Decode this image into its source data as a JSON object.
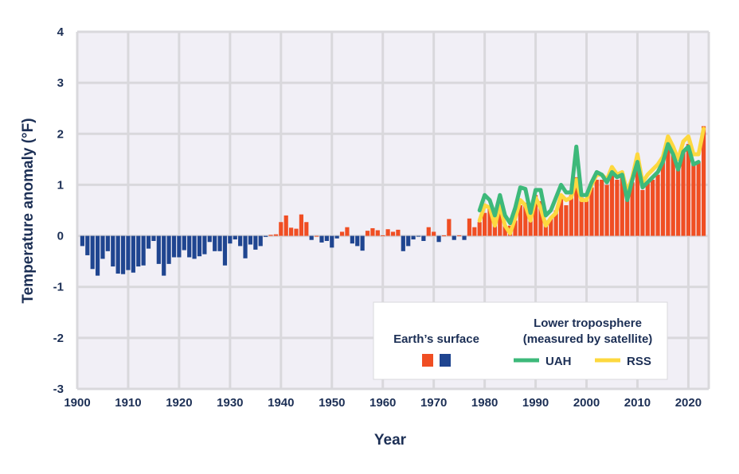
{
  "chart_data": {
    "type": "bar",
    "title": "",
    "xlabel": "Year",
    "ylabel": "Temperature anomaly (°F)",
    "xlim": [
      1900,
      2024
    ],
    "ylim": [
      -3,
      4
    ],
    "grid": true,
    "x_ticks": [
      "1900",
      "1910",
      "1920",
      "1930",
      "1940",
      "1950",
      "1960",
      "1970",
      "1980",
      "1990",
      "2000",
      "2010",
      "2020"
    ],
    "y_ticks": [
      "4",
      "3",
      "2",
      "1",
      "0",
      "-1",
      "-2",
      "-3"
    ],
    "legend": {
      "placement": "bottom-right",
      "surface_title": "Earth’s surface",
      "satellite_title_1": "Lower troposphere",
      "satellite_title_2": "(measured by satellite)",
      "uah_label": "UAH",
      "rss_label": "RSS"
    },
    "colors": {
      "positive": "#f04e23",
      "negative": "#1f4590",
      "uah": "#3db97a",
      "rss": "#fdd83f",
      "plot_bg": "#f1eff6",
      "grid": "#d9d8dc"
    },
    "surface": {
      "name": "Earth’s surface",
      "start_year": 1901,
      "values": [
        -0.2,
        -0.38,
        -0.65,
        -0.78,
        -0.45,
        -0.3,
        -0.6,
        -0.74,
        -0.75,
        -0.67,
        -0.72,
        -0.6,
        -0.58,
        -0.25,
        -0.1,
        -0.55,
        -0.78,
        -0.55,
        -0.42,
        -0.42,
        -0.28,
        -0.42,
        -0.45,
        -0.4,
        -0.36,
        -0.12,
        -0.3,
        -0.3,
        -0.58,
        -0.15,
        -0.07,
        -0.2,
        -0.44,
        -0.17,
        -0.27,
        -0.2,
        -0.02,
        0.02,
        0.03,
        0.27,
        0.4,
        0.16,
        0.14,
        0.42,
        0.27,
        -0.08,
        0.0,
        -0.13,
        -0.1,
        -0.23,
        -0.05,
        0.08,
        0.17,
        -0.15,
        -0.2,
        -0.29,
        0.1,
        0.15,
        0.11,
        0.01,
        0.13,
        0.08,
        0.12,
        -0.3,
        -0.2,
        -0.07,
        -0.01,
        -0.1,
        0.17,
        0.08,
        -0.12,
        0.01,
        0.33,
        -0.08,
        0.01,
        -0.08,
        0.34,
        0.17,
        0.27,
        0.45,
        0.55,
        0.3,
        0.55,
        0.2,
        0.2,
        0.3,
        0.6,
        0.65,
        0.35,
        0.8,
        0.68,
        0.3,
        0.35,
        0.5,
        0.75,
        0.6,
        0.8,
        1.15,
        0.75,
        0.72,
        0.95,
        1.1,
        1.1,
        1.0,
        1.25,
        1.1,
        1.15,
        0.85,
        1.05,
        1.3,
        0.9,
        1.05,
        1.1,
        1.2,
        1.55,
        1.75,
        1.6,
        1.35,
        1.7,
        1.8,
        1.4,
        1.45,
        2.15
      ]
    },
    "series": [
      {
        "name": "UAH",
        "start_year": 1979,
        "values": [
          0.5,
          0.8,
          0.7,
          0.4,
          0.8,
          0.4,
          0.25,
          0.55,
          0.95,
          0.92,
          0.45,
          0.9,
          0.9,
          0.4,
          0.5,
          0.75,
          1.0,
          0.85,
          0.85,
          1.75,
          0.8,
          0.8,
          1.05,
          1.25,
          1.2,
          1.05,
          1.25,
          1.15,
          1.2,
          0.7,
          1.1,
          1.45,
          0.95,
          1.05,
          1.15,
          1.25,
          1.45,
          1.8,
          1.6,
          1.3,
          1.65,
          1.75,
          1.4,
          1.45
        ]
      },
      {
        "name": "RSS",
        "start_year": 1979,
        "values": [
          0.3,
          0.6,
          0.55,
          0.2,
          0.6,
          0.2,
          0.05,
          0.35,
          0.7,
          0.6,
          0.3,
          0.75,
          0.55,
          0.2,
          0.35,
          0.45,
          0.8,
          0.7,
          0.75,
          1.1,
          0.7,
          0.7,
          1.0,
          1.2,
          1.2,
          1.1,
          1.35,
          1.2,
          1.25,
          0.85,
          1.15,
          1.6,
          1.05,
          1.2,
          1.3,
          1.4,
          1.55,
          1.95,
          1.75,
          1.5,
          1.85,
          1.95,
          1.6,
          1.6,
          2.1
        ]
      }
    ]
  }
}
